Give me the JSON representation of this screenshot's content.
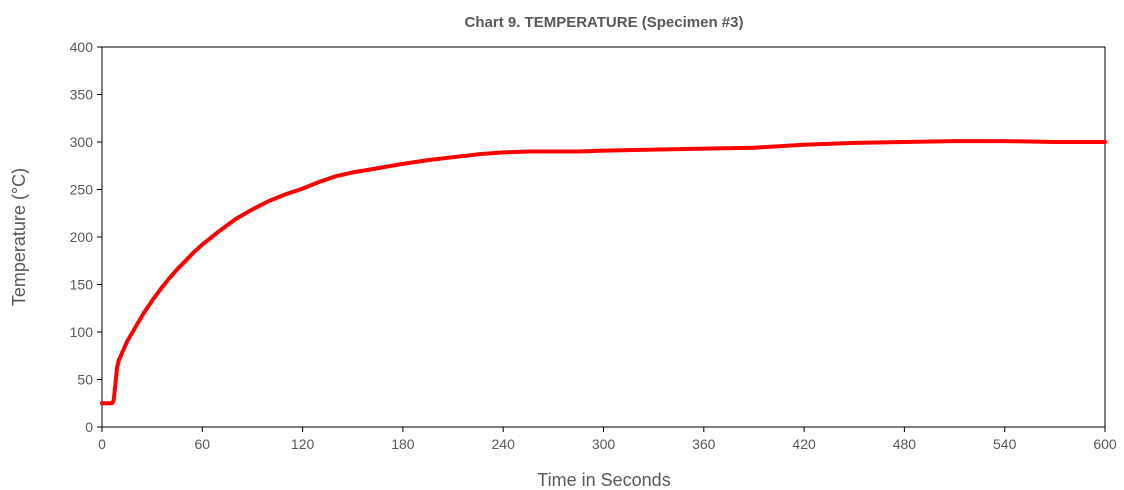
{
  "chart_data": {
    "type": "line",
    "title": "Chart 9. TEMPERATURE (Specimen #3)",
    "xlabel": "Time in Seconds",
    "ylabel": "Temperature (°C)",
    "xlim": [
      0,
      600
    ],
    "ylim": [
      0,
      400
    ],
    "xticks": [
      0,
      60,
      120,
      180,
      240,
      300,
      360,
      420,
      480,
      540,
      600
    ],
    "yticks": [
      0,
      50,
      100,
      150,
      200,
      250,
      300,
      350,
      400
    ],
    "grid": false,
    "legend": "none",
    "series": [
      {
        "color": "#ff0000",
        "x": [
          0,
          3,
          6,
          7,
          8,
          9,
          10,
          12,
          15,
          20,
          25,
          30,
          35,
          40,
          45,
          50,
          55,
          60,
          70,
          80,
          90,
          100,
          110,
          120,
          130,
          140,
          150,
          160,
          170,
          180,
          195,
          210,
          225,
          240,
          255,
          270,
          285,
          300,
          330,
          360,
          390,
          420,
          450,
          480,
          510,
          540,
          570,
          600
        ],
        "y": [
          25,
          25,
          25,
          28,
          45,
          62,
          70,
          78,
          90,
          105,
          120,
          133,
          145,
          156,
          166,
          175,
          184,
          192,
          206,
          219,
          229,
          238,
          245,
          251,
          258,
          264,
          268,
          271,
          274,
          277,
          281,
          284,
          287,
          289,
          290,
          290,
          290,
          291,
          292,
          293,
          294,
          297,
          299,
          300,
          301,
          301,
          300,
          300
        ]
      }
    ]
  }
}
